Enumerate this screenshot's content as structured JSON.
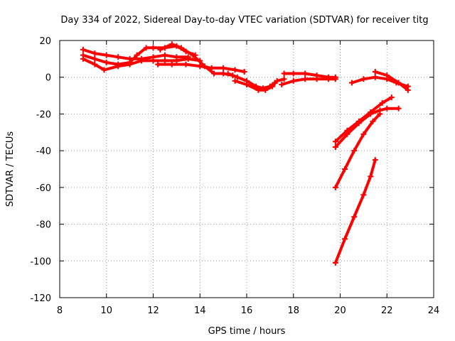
{
  "chart_data": {
    "type": "line",
    "title": "Day 334 of 2022, Sidereal Day-to-day VTEC variation (SDTVAR) for receiver titg",
    "xlabel": "GPS time / hours",
    "ylabel": "SDTVAR / TECUs",
    "xlim": [
      8,
      24
    ],
    "ylim": [
      -120,
      20
    ],
    "xticks": [
      8,
      10,
      12,
      14,
      16,
      18,
      20,
      22,
      24
    ],
    "yticks": [
      20,
      0,
      -20,
      -40,
      -60,
      -80,
      -100,
      -120
    ],
    "grid": true,
    "color": "#ff0000",
    "series": [
      {
        "name": "s1",
        "points": [
          [
            9.0,
            15
          ],
          [
            9.5,
            13
          ],
          [
            10.0,
            12
          ],
          [
            10.5,
            11
          ],
          [
            11.0,
            10
          ],
          [
            11.5,
            10
          ],
          [
            12.0,
            11
          ],
          [
            12.5,
            12
          ],
          [
            13.0,
            11
          ],
          [
            13.5,
            11
          ]
        ]
      },
      {
        "name": "s2",
        "points": [
          [
            9.0,
            12
          ],
          [
            9.5,
            10
          ],
          [
            10.0,
            8
          ],
          [
            10.5,
            7
          ],
          [
            11.0,
            8
          ],
          [
            11.3,
            12
          ],
          [
            11.7,
            16
          ],
          [
            12.0,
            16
          ],
          [
            12.5,
            16
          ],
          [
            13.0,
            17
          ],
          [
            13.4,
            14
          ],
          [
            13.8,
            12
          ]
        ]
      },
      {
        "name": "s3",
        "points": [
          [
            9.0,
            10
          ],
          [
            9.5,
            7
          ],
          [
            9.9,
            4
          ],
          [
            10.5,
            6
          ],
          [
            11.0,
            7
          ],
          [
            11.5,
            9
          ],
          [
            12.0,
            9
          ],
          [
            12.5,
            9
          ],
          [
            13.0,
            9
          ],
          [
            13.5,
            10
          ],
          [
            14.0,
            9
          ]
        ]
      },
      {
        "name": "s4",
        "points": [
          [
            12.2,
            7
          ],
          [
            12.8,
            7
          ],
          [
            13.4,
            7
          ],
          [
            14.0,
            6
          ],
          [
            14.5,
            5
          ],
          [
            15.0,
            5
          ],
          [
            15.5,
            4
          ],
          [
            15.9,
            3
          ]
        ]
      },
      {
        "name": "s5",
        "points": [
          [
            12.3,
            15
          ],
          [
            12.8,
            18
          ],
          [
            13.2,
            16
          ],
          [
            13.7,
            12
          ],
          [
            14.2,
            6
          ],
          [
            14.6,
            2
          ],
          [
            15.0,
            2
          ],
          [
            15.4,
            1
          ]
        ]
      },
      {
        "name": "s6",
        "points": [
          [
            15.2,
            2
          ],
          [
            15.6,
            0
          ],
          [
            16.0,
            -2
          ],
          [
            16.4,
            -5
          ],
          [
            16.7,
            -6
          ],
          [
            17.0,
            -5
          ],
          [
            17.2,
            -3
          ]
        ]
      },
      {
        "name": "s7",
        "points": [
          [
            15.5,
            -2
          ],
          [
            16.0,
            -4
          ],
          [
            16.5,
            -7
          ],
          [
            16.8,
            -7
          ],
          [
            17.1,
            -5
          ],
          [
            17.3,
            -2
          ],
          [
            17.6,
            -1
          ]
        ]
      },
      {
        "name": "s8",
        "points": [
          [
            17.6,
            2
          ],
          [
            18.0,
            2
          ],
          [
            18.5,
            2
          ],
          [
            19.0,
            1
          ],
          [
            19.5,
            0
          ],
          [
            19.8,
            0
          ]
        ]
      },
      {
        "name": "s9",
        "points": [
          [
            17.5,
            -4
          ],
          [
            18.0,
            -2
          ],
          [
            18.5,
            -1
          ],
          [
            19.0,
            -1
          ],
          [
            19.5,
            -1
          ],
          [
            19.8,
            -1
          ]
        ]
      },
      {
        "name": "s10",
        "points": [
          [
            20.5,
            -3
          ],
          [
            21.0,
            -1
          ],
          [
            21.5,
            0
          ],
          [
            22.0,
            -1
          ],
          [
            22.4,
            -3
          ],
          [
            22.9,
            -5
          ]
        ]
      },
      {
        "name": "s11",
        "points": [
          [
            21.5,
            3
          ],
          [
            22.0,
            1
          ],
          [
            22.5,
            -3
          ],
          [
            22.9,
            -7
          ]
        ]
      },
      {
        "name": "s12",
        "points": [
          [
            19.8,
            -35
          ],
          [
            20.3,
            -29
          ],
          [
            20.8,
            -24
          ],
          [
            21.3,
            -19
          ],
          [
            21.8,
            -14
          ],
          [
            22.2,
            -11
          ]
        ]
      },
      {
        "name": "s13",
        "points": [
          [
            19.8,
            -38
          ],
          [
            20.3,
            -31
          ],
          [
            20.8,
            -25
          ],
          [
            21.3,
            -20
          ],
          [
            21.7,
            -18
          ],
          [
            22.0,
            -17
          ],
          [
            22.5,
            -17
          ]
        ]
      },
      {
        "name": "s14",
        "points": [
          [
            19.8,
            -60
          ],
          [
            20.2,
            -50
          ],
          [
            20.6,
            -40
          ],
          [
            21.0,
            -31
          ],
          [
            21.4,
            -24
          ],
          [
            21.7,
            -20
          ]
        ]
      },
      {
        "name": "s15",
        "points": [
          [
            19.8,
            -101
          ],
          [
            20.2,
            -88
          ],
          [
            20.6,
            -76
          ],
          [
            21.0,
            -64
          ],
          [
            21.3,
            -54
          ],
          [
            21.5,
            -45
          ]
        ]
      }
    ]
  }
}
